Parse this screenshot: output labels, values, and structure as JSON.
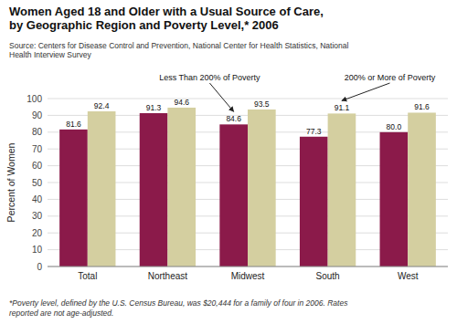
{
  "chart_data": {
    "type": "bar",
    "title": "Women Aged 18 and Older with a Usual Source of Care,\nby Geographic Region and Poverty Level,* 2006",
    "source": "Source: Centers for Disease Control and Prevention, National Center for Health Statistics, National\nHealth Interview Survey",
    "footnote": "*Poverty level, defined by the U.S. Census Bureau, was $20,444 for a family of four in 2006. Rates\nreported are not age-adjusted.",
    "y_label": "Percent of Women",
    "categories": [
      "Total",
      "Northeast",
      "Midwest",
      "South",
      "West"
    ],
    "series": [
      {
        "name": "Less Than 200% of Poverty",
        "color": "#8B1A4A",
        "values": [
          81.6,
          91.3,
          84.6,
          77.3,
          80.0
        ],
        "value_labels": [
          "81.6",
          "91.3",
          "84.6",
          "77.3",
          "80.0"
        ]
      },
      {
        "name": "200% or More of Poverty",
        "color": "#D4CFA0",
        "values": [
          92.4,
          94.6,
          93.5,
          91.1,
          91.6
        ]
      }
    ],
    "ylim": [
      0,
      100
    ],
    "yticks": [
      0,
      10,
      20,
      30,
      40,
      50,
      60,
      70,
      80,
      90,
      100
    ],
    "grid": true,
    "data_labels": true
  }
}
